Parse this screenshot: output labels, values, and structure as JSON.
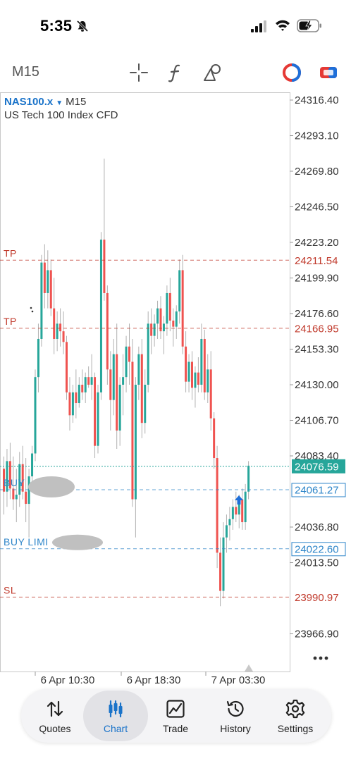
{
  "status": {
    "time": "5:35",
    "icons": [
      "bell-slash-icon",
      "signal-icon",
      "wifi-icon",
      "battery-charging-icon"
    ]
  },
  "toolbar": {
    "timeframe": "M15",
    "icons": [
      "crosshair-icon",
      "function-icon",
      "draw-objects-icon",
      "account-icon",
      "trade-toggle-icon"
    ]
  },
  "chart": {
    "symbol": "NAS100.x",
    "timeframe": "M15",
    "description": "US Tech 100 Index CFD",
    "price_ticks": [
      "24316.40",
      "24293.10",
      "24269.80",
      "24246.50",
      "24223.20",
      "24199.90",
      "24176.60",
      "24153.30",
      "24130.00",
      "24106.70",
      "24083.40",
      "24036.80",
      "24013.50",
      "23966.90"
    ],
    "time_ticks": [
      "6 Apr 10:30",
      "6 Apr 18:30",
      "7 Apr 03:30"
    ],
    "order_lines": [
      {
        "label": "TP",
        "price": "24211.54",
        "type": "tp"
      },
      {
        "label": "TP",
        "price": "24166.95",
        "type": "tp"
      },
      {
        "label": "BUY",
        "price": "24061.27",
        "type": "buy"
      },
      {
        "label": "BUY LIMI",
        "price": "24022.60",
        "type": "buy"
      },
      {
        "label": "SL",
        "price": "23990.97",
        "type": "sl"
      }
    ],
    "current_price": "24076.59",
    "colors": {
      "up": "#26a69a",
      "down": "#ef5350",
      "tp_sl": "#c0392b",
      "buy": "#2f86c9",
      "current": "#26a69a",
      "wick": "#b0b0b0"
    }
  },
  "nav": {
    "active": "Chart",
    "items": [
      {
        "label": "Quotes",
        "icon": "quotes-arrows-icon"
      },
      {
        "label": "Chart",
        "icon": "candlestick-chart-icon"
      },
      {
        "label": "Trade",
        "icon": "trade-chart-icon"
      },
      {
        "label": "History",
        "icon": "history-clock-icon"
      },
      {
        "label": "Settings",
        "icon": "settings-gear-icon"
      }
    ]
  }
}
